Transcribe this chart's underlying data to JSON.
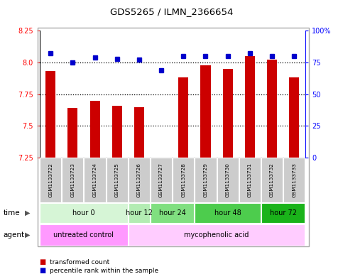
{
  "title": "GDS5265 / ILMN_2366654",
  "samples": [
    "GSM1133722",
    "GSM1133723",
    "GSM1133724",
    "GSM1133725",
    "GSM1133726",
    "GSM1133727",
    "GSM1133728",
    "GSM1133729",
    "GSM1133730",
    "GSM1133731",
    "GSM1133732",
    "GSM1133733"
  ],
  "red_values": [
    7.93,
    7.64,
    7.7,
    7.66,
    7.65,
    7.25,
    7.88,
    7.98,
    7.95,
    8.05,
    8.02,
    7.88
  ],
  "blue_values": [
    82,
    75,
    79,
    78,
    77,
    69,
    80,
    80,
    80,
    82,
    80,
    80
  ],
  "ylim_left": [
    7.25,
    8.25
  ],
  "ylim_right": [
    0,
    100
  ],
  "yticks_left": [
    7.25,
    7.5,
    7.75,
    8.0,
    8.25
  ],
  "yticks_right": [
    0,
    25,
    50,
    75,
    100
  ],
  "ytick_labels_right": [
    "0",
    "25",
    "50",
    "75",
    "100%"
  ],
  "grid_values": [
    7.5,
    7.75,
    8.0
  ],
  "time_groups": [
    {
      "label": "hour 0",
      "start": 0,
      "end": 3,
      "color": "#d6f5d6"
    },
    {
      "label": "hour 12",
      "start": 4,
      "end": 4,
      "color": "#b3ecb3"
    },
    {
      "label": "hour 24",
      "start": 5,
      "end": 6,
      "color": "#80df80"
    },
    {
      "label": "hour 48",
      "start": 7,
      "end": 9,
      "color": "#4dcc4d"
    },
    {
      "label": "hour 72",
      "start": 10,
      "end": 11,
      "color": "#1ab31a"
    }
  ],
  "agent_groups": [
    {
      "label": "untreated control",
      "start": 0,
      "end": 3,
      "color": "#ff99ff"
    },
    {
      "label": "mycophenolic acid",
      "start": 4,
      "end": 11,
      "color": "#ffccff"
    }
  ],
  "bar_color": "#cc0000",
  "dot_color": "#0000cc",
  "bar_bottom": 7.25,
  "legend_red": "transformed count",
  "legend_blue": "percentile rank within the sample",
  "bg_color": "#ffffff",
  "plot_bg": "#ffffff",
  "sample_bg": "#cccccc",
  "border_color": "#aaaaaa"
}
